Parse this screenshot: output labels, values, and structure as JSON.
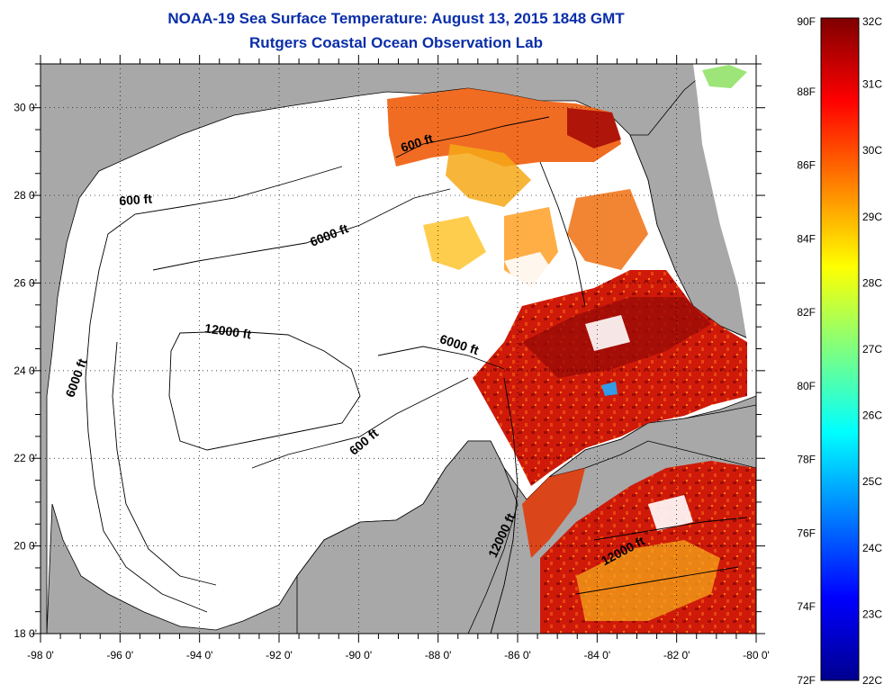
{
  "header": {
    "title": "NOAA-19 Sea Surface Temperature:  August 13, 2015 1848 GMT",
    "subtitle": "Rutgers Coastal Ocean Observation Lab"
  },
  "map": {
    "lon_range": [
      -98,
      -80
    ],
    "lat_range": [
      18,
      31
    ],
    "lon_ticks": [
      {
        "value": -98,
        "label": "-98 0'"
      },
      {
        "value": -96,
        "label": "-96 0'"
      },
      {
        "value": -94,
        "label": "-94 0'"
      },
      {
        "value": -92,
        "label": "-92 0'"
      },
      {
        "value": -90,
        "label": "-90 0'"
      },
      {
        "value": -88,
        "label": "-88 0'"
      },
      {
        "value": -86,
        "label": "-86 0'"
      },
      {
        "value": -84,
        "label": "-84 0'"
      },
      {
        "value": -82,
        "label": "-82 0'"
      },
      {
        "value": -80,
        "label": "-80 0'"
      }
    ],
    "lat_ticks": [
      {
        "value": 30,
        "label": "30 0'"
      },
      {
        "value": 28,
        "label": "28 0'"
      },
      {
        "value": 26,
        "label": "26 0'"
      },
      {
        "value": 24,
        "label": "24 0'"
      },
      {
        "value": 22,
        "label": "22 0'"
      },
      {
        "value": 20,
        "label": "20 0'"
      },
      {
        "value": 18,
        "label": "18 0'"
      }
    ],
    "contour_labels": [
      {
        "text": "600 ft",
        "lon": -88.5,
        "lat": 29.1,
        "angle": -18
      },
      {
        "text": "600 ft",
        "lon": -95.6,
        "lat": 27.8,
        "angle": -4
      },
      {
        "text": "6000 ft",
        "lon": -90.7,
        "lat": 27.0,
        "angle": -22
      },
      {
        "text": "6000 ft",
        "lon": -97.0,
        "lat": 23.8,
        "angle": -70
      },
      {
        "text": "12000 ft",
        "lon": -93.3,
        "lat": 24.8,
        "angle": 8
      },
      {
        "text": "6000 ft",
        "lon": -87.5,
        "lat": 24.5,
        "angle": 18
      },
      {
        "text": "600 ft",
        "lon": -89.8,
        "lat": 22.3,
        "angle": -40
      },
      {
        "text": "12000 ft",
        "lon": -86.3,
        "lat": 20.2,
        "angle": -65
      },
      {
        "text": "12000 ft",
        "lon": -83.3,
        "lat": 19.8,
        "angle": -28
      }
    ],
    "colors": {
      "land": "#a8a8a8",
      "ocean": "#ffffff"
    }
  },
  "colorbar": {
    "colors": [
      "#00008f",
      "#0000ff",
      "#007fff",
      "#00ffff",
      "#7fff7f",
      "#ffff00",
      "#ff7f00",
      "#ff0000",
      "#7f0000"
    ],
    "fahrenheit": [
      {
        "value": 90,
        "label": "90F"
      },
      {
        "value": 88,
        "label": "88F"
      },
      {
        "value": 86,
        "label": "86F"
      },
      {
        "value": 84,
        "label": "84F"
      },
      {
        "value": 82,
        "label": "82F"
      },
      {
        "value": 80,
        "label": "80F"
      },
      {
        "value": 78,
        "label": "78F"
      },
      {
        "value": 76,
        "label": "76F"
      },
      {
        "value": 74,
        "label": "74F"
      },
      {
        "value": 72,
        "label": "72F"
      }
    ],
    "celsius": [
      {
        "value": 32,
        "label": "32C"
      },
      {
        "value": 31,
        "label": "31C"
      },
      {
        "value": 30,
        "label": "30C"
      },
      {
        "value": 29,
        "label": "29C"
      },
      {
        "value": 28,
        "label": "28C"
      },
      {
        "value": 27,
        "label": "27C"
      },
      {
        "value": 26,
        "label": "26C"
      },
      {
        "value": 25,
        "label": "25C"
      },
      {
        "value": 24,
        "label": "24C"
      },
      {
        "value": 23,
        "label": "23C"
      },
      {
        "value": 22,
        "label": "22C"
      }
    ]
  }
}
